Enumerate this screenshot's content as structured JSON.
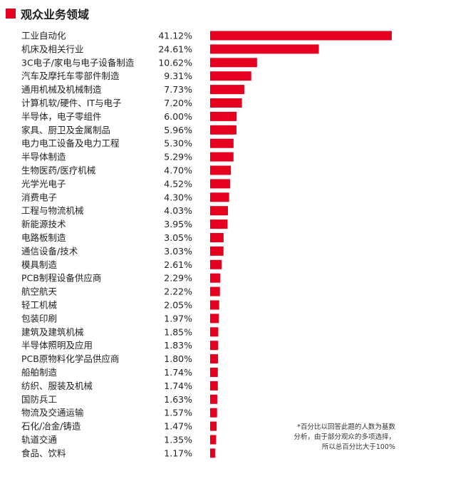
{
  "header": {
    "title": "观众业务领域"
  },
  "colors": {
    "accent": "#e5001f",
    "bar": "#e5001f",
    "text": "#222222"
  },
  "note": {
    "lines": [
      "*百分比以回答此题的人数为基数",
      "分析，由于部分观众的多项选择，",
      "所以总百分比大于100%"
    ]
  },
  "chart_data": {
    "type": "bar",
    "orientation": "horizontal",
    "title": "观众业务领域",
    "categories": [
      "工业自动化",
      "机床及相关行业",
      "3C电子/家电与电子设备制造",
      "汽车及摩托车零部件制造",
      "通用机械及机械制造",
      "计算机软/硬件、IT与电子",
      "半导体，电子零组件",
      "家具、厨卫及金属制品",
      "电力电工设备及电力工程",
      "半导体制造",
      "生物医药/医疗机械",
      "光学光电子",
      "消费电子",
      "工程与物流机械",
      "新能源技术",
      "电路板制造",
      "通信设备/技术",
      "模具制造",
      "PCB制程设备供应商",
      "航空航天",
      "轻工机械",
      "包装印刷",
      "建筑及建筑机械",
      "半导体照明及应用",
      "PCB原物料化学品供应商",
      "船舶制造",
      "纺织、服装及机械",
      "国防兵工",
      "物流及交通运输",
      "石化/冶金/铸造",
      "轨道交通",
      "食品、饮料"
    ],
    "values": [
      41.12,
      24.61,
      10.62,
      9.31,
      7.73,
      7.2,
      6.0,
      5.96,
      5.3,
      5.29,
      4.7,
      4.52,
      4.3,
      4.03,
      3.95,
      3.05,
      3.03,
      2.61,
      2.29,
      2.22,
      2.05,
      1.97,
      1.85,
      1.83,
      1.8,
      1.74,
      1.74,
      1.63,
      1.57,
      1.47,
      1.35,
      1.17
    ],
    "value_labels": [
      "41.12%",
      "24.61%",
      "10.62%",
      "9.31%",
      "7.73%",
      "7.20%",
      "6.00%",
      "5.96%",
      "5.30%",
      "5.29%",
      "4.70%",
      "4.52%",
      "4.30%",
      "4.03%",
      "3.95%",
      "3.05%",
      "3.03%",
      "2.61%",
      "2.29%",
      "2.22%",
      "2.05%",
      "1.97%",
      "1.85%",
      "1.83%",
      "1.80%",
      "1.74%",
      "1.74%",
      "1.63%",
      "1.57%",
      "1.47%",
      "1.35%",
      "1.17%"
    ],
    "xlim": [
      0,
      41.12
    ],
    "grid": false,
    "legend": "none"
  }
}
